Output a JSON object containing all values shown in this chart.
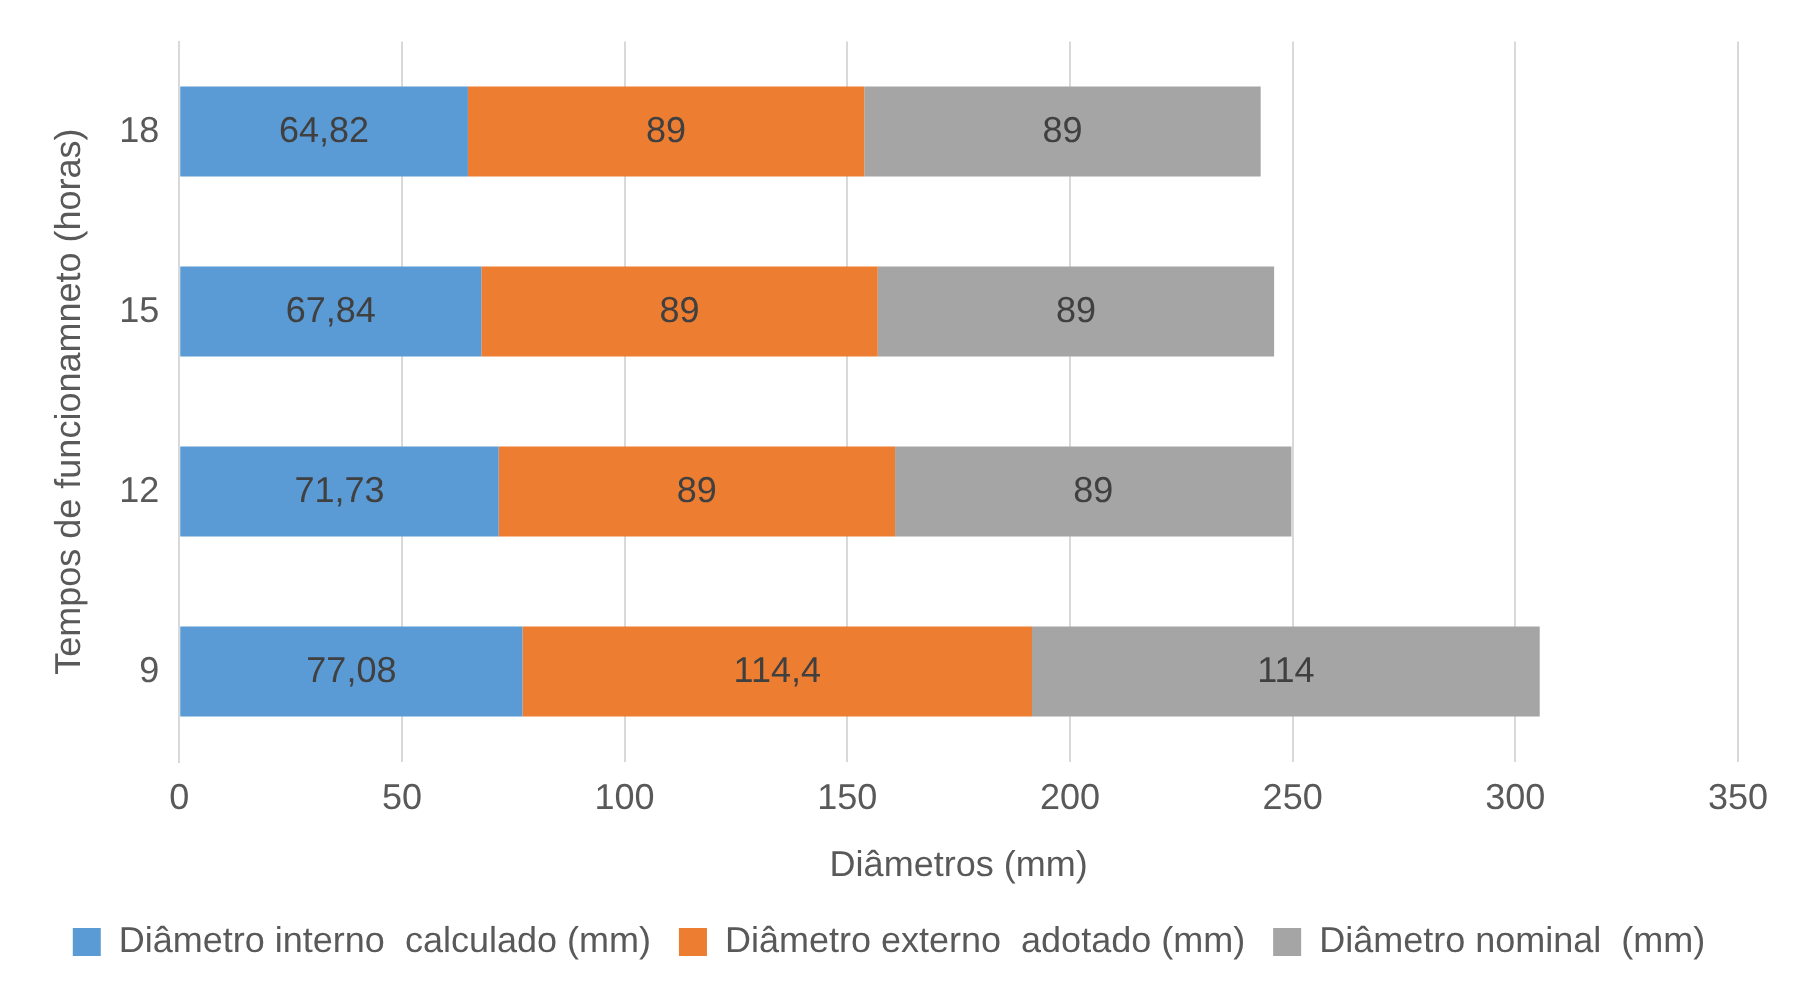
{
  "chart_data": {
    "type": "bar",
    "orientation": "horizontal",
    "stacked": true,
    "xlabel": "Diâmetros (mm)",
    "ylabel": "Tempos de funcionamneto (horas)",
    "categories": [
      "18",
      "15",
      "12",
      "9"
    ],
    "xlim": [
      0,
      350
    ],
    "xticks": [
      0,
      50,
      100,
      150,
      200,
      250,
      300,
      350
    ],
    "grid": "x",
    "legend": "bottom",
    "series": [
      {
        "name": "Diâmetro interno  calculado (mm)",
        "color": "#5b9bd5",
        "values": [
          64.82,
          67.84,
          71.73,
          77.08
        ],
        "value_labels": [
          "64,82",
          "67,84",
          "71,73",
          "77,08"
        ]
      },
      {
        "name": "Diâmetro externo  adotado (mm)",
        "color": "#ed7d31",
        "values": [
          89,
          89,
          89,
          114.4
        ],
        "value_labels": [
          "89",
          "89",
          "89",
          "114,4"
        ]
      },
      {
        "name": "Diâmetro nominal  (mm)",
        "color": "#a5a5a5",
        "values": [
          89,
          89,
          89,
          114
        ],
        "value_labels": [
          "89",
          "89",
          "89",
          "114"
        ]
      }
    ]
  }
}
